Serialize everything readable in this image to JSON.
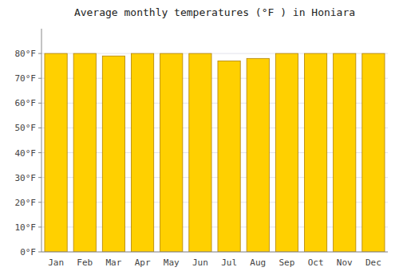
{
  "chart_data": {
    "type": "bar",
    "title": "Average monthly temperatures (°F ) in Honiara",
    "categories": [
      "Jan",
      "Feb",
      "Mar",
      "Apr",
      "May",
      "Jun",
      "Jul",
      "Aug",
      "Sep",
      "Oct",
      "Nov",
      "Dec"
    ],
    "values": [
      80,
      80,
      79,
      80,
      80,
      80,
      77,
      78,
      80,
      80,
      80,
      80
    ],
    "color": "#FFD000",
    "ylim": [
      0,
      90
    ],
    "yticks": [
      {
        "value": 0,
        "label": "0°F"
      },
      {
        "value": 10,
        "label": "10°F"
      },
      {
        "value": 20,
        "label": "20°F"
      },
      {
        "value": 30,
        "label": "30°F"
      },
      {
        "value": 40,
        "label": "40°F"
      },
      {
        "value": 50,
        "label": "50°F"
      },
      {
        "value": 60,
        "label": "60°F"
      },
      {
        "value": 70,
        "label": "70°F"
      },
      {
        "value": 80,
        "label": "80°F"
      }
    ],
    "grid": true
  }
}
